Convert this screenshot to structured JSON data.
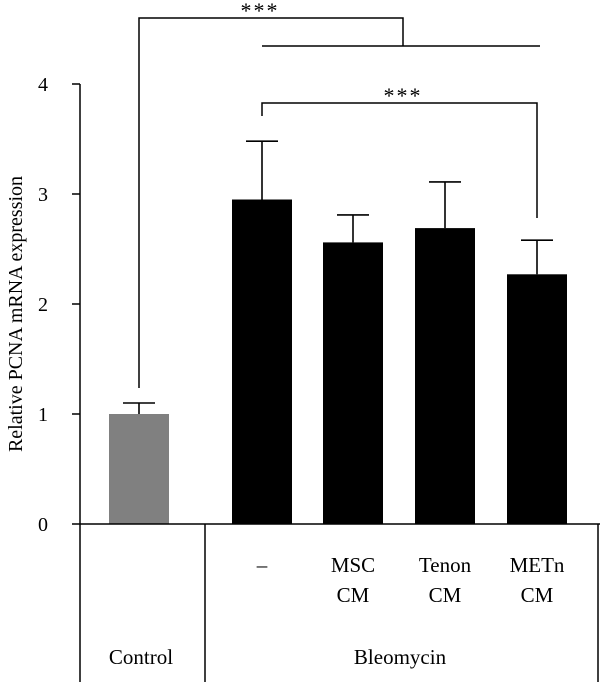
{
  "chart_data": {
    "type": "bar",
    "ylabel": "Relative PCNA mRNA expression",
    "ylim": [
      0,
      4
    ],
    "yticks": [
      "0",
      "1",
      "2",
      "3",
      "4"
    ],
    "bars": [
      {
        "label_lines": [
          ""
        ],
        "value": 1.0,
        "error": 0.1,
        "color": "#808080"
      },
      {
        "label_lines": [
          "–"
        ],
        "value": 2.95,
        "error": 0.53,
        "color": "#000000"
      },
      {
        "label_lines": [
          "MSC",
          "CM"
        ],
        "value": 2.56,
        "error": 0.25,
        "color": "#000000"
      },
      {
        "label_lines": [
          "Tenon",
          "CM"
        ],
        "value": 2.69,
        "error": 0.42,
        "color": "#000000"
      },
      {
        "label_lines": [
          "METn",
          "CM"
        ],
        "value": 2.27,
        "error": 0.31,
        "color": "#000000"
      }
    ],
    "groups": [
      {
        "label": "Control"
      },
      {
        "label": "Bleomycin"
      }
    ],
    "significance": [
      {
        "text": "***",
        "from": "Control",
        "to": "Bleomycin"
      },
      {
        "text": "***",
        "from": "–",
        "to": "METn CM"
      }
    ]
  }
}
